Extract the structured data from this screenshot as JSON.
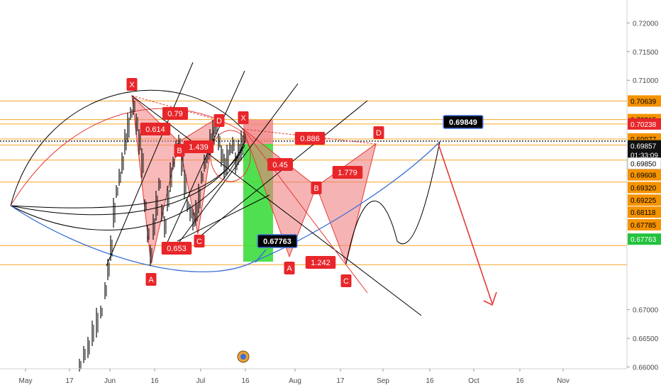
{
  "chart_data": {
    "type": "line",
    "title": "",
    "xlabel": "",
    "ylabel": "",
    "ylim": [
      0.6597,
      0.724
    ],
    "grid": false,
    "x_ticks": [
      "May",
      "17",
      "Jun",
      "16",
      "Jul",
      "16",
      "Aug",
      "17",
      "Sep",
      "16",
      "Oct",
      "16",
      "Nov"
    ],
    "y_ticks": [
      {
        "value": 0.72,
        "label": "0.72000"
      },
      {
        "value": 0.715,
        "label": "0.71500"
      },
      {
        "value": 0.71,
        "label": "0.71000"
      },
      {
        "value": 0.67,
        "label": "0.67000"
      },
      {
        "value": 0.665,
        "label": "0.66500"
      },
      {
        "value": 0.66,
        "label": "0.66000"
      }
    ],
    "price_badges": [
      {
        "label": "0.70639",
        "value": 0.70639,
        "style": "orange"
      },
      {
        "label": "0.70315",
        "value": 0.70315,
        "style": "orange"
      },
      {
        "label": "0.70238",
        "value": 0.70238,
        "style": "red"
      },
      {
        "label": "0.69977",
        "value": 0.69977,
        "style": "orange"
      },
      {
        "label": "0.69870",
        "value": 0.6987,
        "style": "orange"
      },
      {
        "label": "0.69857",
        "value": 0.69857,
        "style": "black"
      },
      {
        "label": "01:33:09",
        "value": 0.697,
        "style": "black"
      },
      {
        "label": "0.69850",
        "value": 0.6955,
        "style": "white"
      },
      {
        "label": "0.69608",
        "value": 0.6935,
        "style": "orange"
      },
      {
        "label": "0.69320",
        "value": 0.6913,
        "style": "orange"
      },
      {
        "label": "0.69225",
        "value": 0.6891,
        "style": "orange"
      },
      {
        "label": "0.68118",
        "value": 0.687,
        "style": "orange"
      },
      {
        "label": "0.67785",
        "value": 0.6848,
        "style": "orange"
      },
      {
        "label": "0.67763",
        "value": 0.6823,
        "style": "green"
      }
    ],
    "horizontal_levels": [
      0.70639,
      0.70315,
      0.70238,
      0.69977,
      0.6987,
      0.69608,
      0.69225,
      0.68118,
      0.67785
    ],
    "pattern_labels": [
      "X",
      "0.79",
      "0.614",
      "B",
      "1.439",
      "D",
      "X",
      "0.886",
      "D",
      "0.45",
      "1.779",
      "B",
      "0.653",
      "C",
      "A",
      "0.67763",
      "A",
      "1.242",
      "C",
      "0.69849"
    ],
    "colors": {
      "level": "#f5a623",
      "pattern_fill": "#f08080",
      "pattern_line": "#e53935",
      "curve_blue": "#3a6fd8",
      "projection": "#e53935",
      "green_box": "#3ddc3d",
      "badge_orange": "#f59300",
      "badge_red": "#e8262a",
      "badge_green": "#23c23e"
    }
  }
}
